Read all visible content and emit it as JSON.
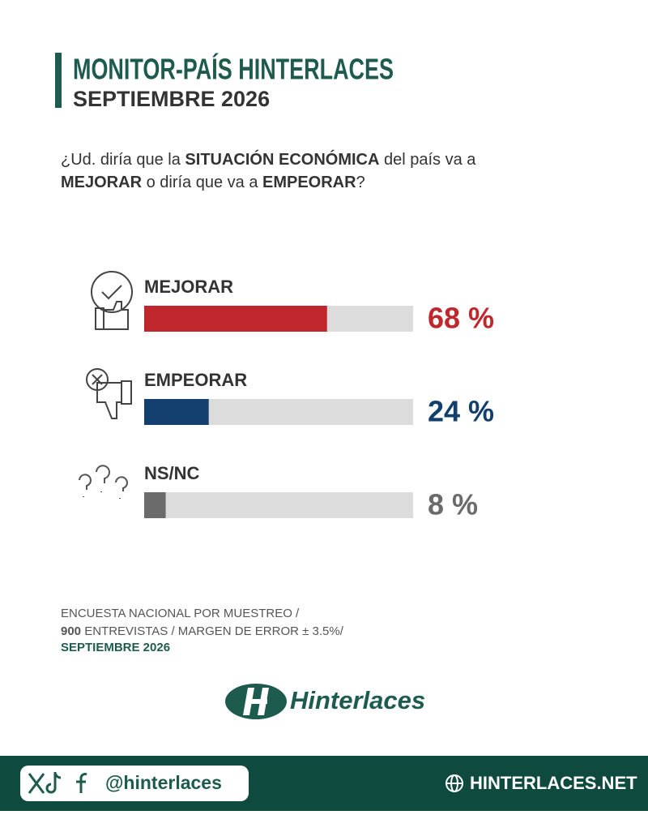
{
  "header": {
    "title": "MONITOR-PAÍS HINTERLACES",
    "subtitle": "SEPTIEMBRE 2026"
  },
  "question": {
    "parts": [
      "¿Ud. diría que la ",
      "SITUACIÓN ECONÓMICA",
      " del país va a",
      "MEJORAR",
      " o diría que va a ",
      "EMPEORAR",
      "?"
    ]
  },
  "chart_data": {
    "type": "bar",
    "orientation": "horizontal",
    "categories": [
      "MEJORAR",
      "EMPEORAR",
      "NS/NC"
    ],
    "values": [
      68,
      24,
      8
    ],
    "value_labels": [
      "68 %",
      "24 %",
      "8 %"
    ],
    "colors": [
      "#c0272d",
      "#123f6e",
      "#6b6b6b"
    ],
    "xlim": [
      0,
      100
    ]
  },
  "note": {
    "line1": "ENCUESTA NACIONAL POR MUESTREO /",
    "count": "900",
    "line2": " ENTREVISTAS / MARGEN DE ERROR  ± 3.5%/",
    "line3": "SEPTIEMBRE 2026"
  },
  "logo": "Hinterlaces",
  "footer": {
    "handle": "@hinterlaces",
    "website": "HINTERLACES.NET"
  }
}
